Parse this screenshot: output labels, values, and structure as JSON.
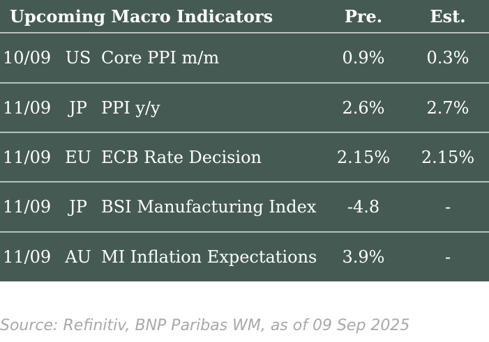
{
  "table": {
    "title": "Upcoming Macro Indicators",
    "col_pre": "Pre.",
    "col_est": "Est.",
    "rows": [
      {
        "date": "10/09",
        "country": "US",
        "indicator": "Core PPI m/m",
        "pre": "0.9%",
        "est": "0.3%"
      },
      {
        "date": "11/09",
        "country": "JP",
        "indicator": "PPI y/y",
        "pre": "2.6%",
        "est": "2.7%"
      },
      {
        "date": "11/09",
        "country": "EU",
        "indicator": "ECB Rate Decision",
        "pre": "2.15%",
        "est": "2.15%"
      },
      {
        "date": "11/09",
        "country": "JP",
        "indicator": "BSI Manufacturing Index",
        "pre": "-4.8",
        "est": "-"
      },
      {
        "date": "11/09",
        "country": "AU",
        "indicator": "MI Inflation Expectations",
        "pre": "3.9%",
        "est": "-"
      }
    ]
  },
  "source": "Source: Refinitiv, BNP Paribas WM, as of 09 Sep 2025",
  "colors": {
    "table_background": "#465a54",
    "divider": "#b7c2bd",
    "text": "#ffffff",
    "source_text": "#a9a9a9"
  }
}
